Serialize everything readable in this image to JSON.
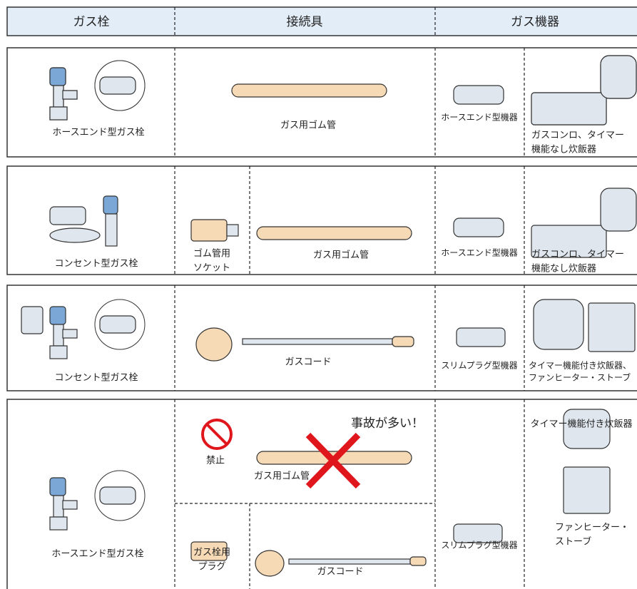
{
  "header": {
    "columns": [
      "ガス栓",
      "接続具",
      "ガス機器"
    ]
  },
  "rows": [
    {
      "valve": "ホースエンド型ガス栓",
      "hose": "ガス用ゴム管",
      "device_type": "ホースエンド型機器",
      "appliances": [
        "ガスコンロ、タイマー",
        "機能なし炊飯器"
      ]
    },
    {
      "valve": "コンセント型ガス栓",
      "socket": [
        "ゴム管用",
        "ソケット"
      ],
      "hose": "ガス用ゴム管",
      "device_type": "ホースエンド型機器",
      "appliances": [
        "ガスコンロ、タイマー",
        "機能なし炊飯器"
      ]
    },
    {
      "valve": "コンセント型ガス栓",
      "cord": "ガスコード",
      "device_type": "スリムプラグ型機器",
      "appliances": [
        "タイマー機能付き炊飯器、",
        "ファンヒーター・ストーブ"
      ]
    },
    {
      "valve": "ホースエンド型ガス栓",
      "prohibited": {
        "label": "禁止",
        "warning": "事故が多い！",
        "hose": "ガス用ゴム管"
      },
      "plug": [
        "ガス栓用",
        "プラグ"
      ],
      "cord": "ガスコード",
      "device_type": "スリムプラグ型機器",
      "appliances": [
        "タイマー機能付き炊飯器"
      ],
      "heater": [
        "ファンヒーター・",
        "ストーブ"
      ]
    }
  ]
}
